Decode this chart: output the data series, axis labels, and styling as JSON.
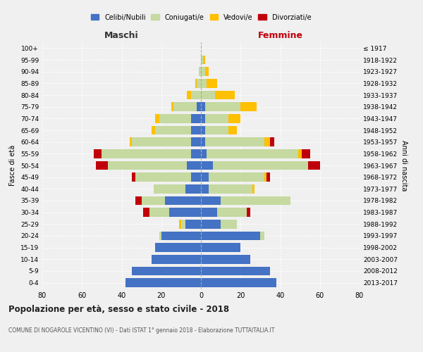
{
  "age_groups": [
    "0-4",
    "5-9",
    "10-14",
    "15-19",
    "20-24",
    "25-29",
    "30-34",
    "35-39",
    "40-44",
    "45-49",
    "50-54",
    "55-59",
    "60-64",
    "65-69",
    "70-74",
    "75-79",
    "80-84",
    "85-89",
    "90-94",
    "95-99",
    "100+"
  ],
  "birth_years": [
    "2013-2017",
    "2008-2012",
    "2003-2007",
    "1998-2002",
    "1993-1997",
    "1988-1992",
    "1983-1987",
    "1978-1982",
    "1973-1977",
    "1968-1972",
    "1963-1967",
    "1958-1962",
    "1953-1957",
    "1948-1952",
    "1943-1947",
    "1938-1942",
    "1933-1937",
    "1928-1932",
    "1923-1927",
    "1918-1922",
    "≤ 1917"
  ],
  "maschi": {
    "celibi": [
      38,
      35,
      25,
      23,
      20,
      8,
      16,
      18,
      8,
      5,
      7,
      5,
      5,
      5,
      5,
      2,
      0,
      0,
      0,
      0,
      0
    ],
    "coniugati": [
      0,
      0,
      0,
      0,
      1,
      2,
      10,
      12,
      16,
      28,
      40,
      45,
      30,
      18,
      16,
      12,
      5,
      2,
      1,
      0,
      0
    ],
    "vedovi": [
      0,
      0,
      0,
      0,
      0,
      1,
      0,
      0,
      0,
      0,
      0,
      0,
      1,
      2,
      2,
      1,
      2,
      1,
      0,
      0,
      0
    ],
    "divorziati": [
      0,
      0,
      0,
      0,
      0,
      0,
      3,
      3,
      0,
      2,
      6,
      4,
      0,
      0,
      0,
      0,
      0,
      0,
      0,
      0,
      0
    ]
  },
  "femmine": {
    "nubili": [
      38,
      35,
      25,
      20,
      30,
      10,
      8,
      10,
      4,
      4,
      6,
      3,
      2,
      2,
      2,
      2,
      0,
      0,
      0,
      0,
      0
    ],
    "coniugate": [
      0,
      0,
      0,
      0,
      2,
      8,
      15,
      35,
      22,
      28,
      48,
      46,
      30,
      12,
      12,
      18,
      7,
      3,
      2,
      1,
      0
    ],
    "vedove": [
      0,
      0,
      0,
      0,
      0,
      0,
      0,
      0,
      1,
      1,
      0,
      2,
      3,
      4,
      6,
      8,
      10,
      5,
      2,
      1,
      0
    ],
    "divorziate": [
      0,
      0,
      0,
      0,
      0,
      0,
      2,
      0,
      0,
      2,
      6,
      4,
      2,
      0,
      0,
      0,
      0,
      0,
      0,
      0,
      0
    ]
  },
  "color_celibi": "#4472c4",
  "color_coniugati": "#c5d9a0",
  "color_vedovi": "#ffc000",
  "color_divorziati": "#c0000b",
  "title": "Popolazione per età, sesso e stato civile - 2018",
  "subtitle": "COMUNE DI NOGAROLE VICENTINO (VI) - Dati ISTAT 1° gennaio 2018 - Elaborazione TUTTAITALIA.IT",
  "xlabel_left": "Maschi",
  "xlabel_right": "Femmine",
  "ylabel_left": "Fasce di età",
  "ylabel_right": "Anni di nascita",
  "xlim": 80,
  "background_color": "#f0f0f0",
  "bar_height": 0.75
}
